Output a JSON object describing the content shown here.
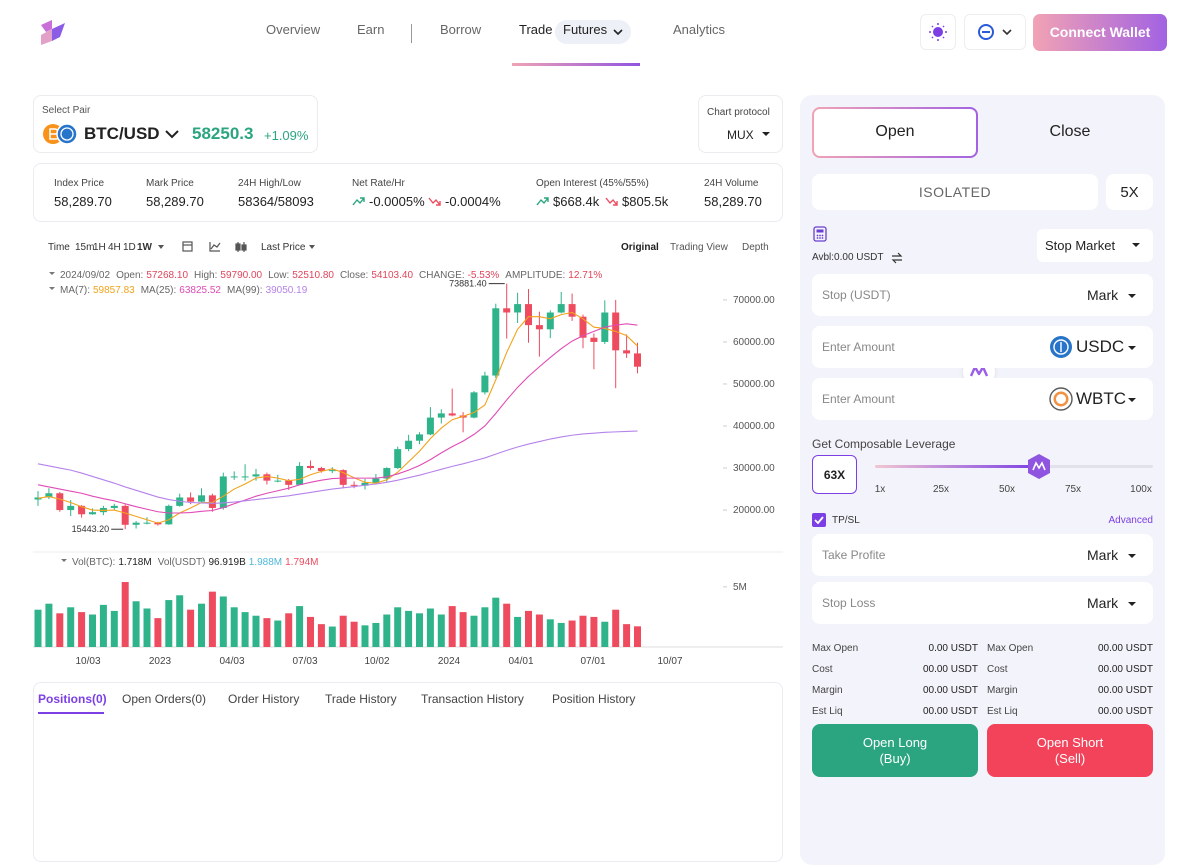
{
  "header": {
    "nav": [
      "Overview",
      "Earn",
      "Borrow",
      "Trade",
      "Futures",
      "Analytics"
    ],
    "connect": "Connect Wallet"
  },
  "pair": {
    "label": "Select Pair",
    "name": "BTC/USD",
    "price": "58250.3",
    "change": "+1.09%"
  },
  "protocol": {
    "label": "Chart protocol",
    "value": "MUX"
  },
  "stats": [
    {
      "label": "Index Price",
      "value": "58,289.70"
    },
    {
      "label": "Mark Price",
      "value": "58,289.70"
    },
    {
      "label": "24H High/Low",
      "value": "58364/58093"
    },
    {
      "label": "Net Rate/Hr",
      "values": [
        "-0.0005%",
        "-0.0004%"
      ]
    },
    {
      "label": "Open Interest (45%/55%)",
      "values": [
        "$668.4k",
        "$805.5k"
      ]
    },
    {
      "label": "24H Volume",
      "value": "58,289.70"
    }
  ],
  "toolbar": {
    "time": "Time",
    "intervals": [
      "15m",
      "1H",
      "4H",
      "1D",
      "1W"
    ],
    "price_type": "Last Price",
    "views": [
      "Original",
      "Trading View",
      "Depth"
    ]
  },
  "chart_data": {
    "type": "candlestick",
    "up_color": "#2fb38a",
    "down_color": "#ef4b5f",
    "ohlc_legend": {
      "date": "2024/09/02",
      "items": [
        {
          "label": "Open:",
          "value": "57268.10"
        },
        {
          "label": "High:",
          "value": "59790.00"
        },
        {
          "label": "Low:",
          "value": "52510.80"
        },
        {
          "label": "Close:",
          "value": "54103.40"
        },
        {
          "label": "CHANGE:",
          "value": "-5.53%"
        },
        {
          "label": "AMPLITUDE:",
          "value": "12.71%"
        }
      ]
    },
    "candles": [
      [
        22500,
        24500,
        21000,
        23000
      ],
      [
        23000,
        25200,
        22600,
        24000
      ],
      [
        24000,
        24300,
        19600,
        20000
      ],
      [
        20000,
        22400,
        18600,
        21000
      ],
      [
        21000,
        21200,
        18200,
        19000
      ],
      [
        19000,
        20400,
        18900,
        19500
      ],
      [
        19500,
        21000,
        18800,
        20500
      ],
      [
        20500,
        21500,
        19900,
        21000
      ],
      [
        21000,
        21400,
        15443.2,
        16500
      ],
      [
        16500,
        17400,
        15600,
        17000
      ],
      [
        17000,
        18300,
        16600,
        17000
      ],
      [
        17000,
        17200,
        16300,
        16600
      ],
      [
        16600,
        21300,
        16500,
        21000
      ],
      [
        21000,
        23900,
        20800,
        23000
      ],
      [
        23000,
        24200,
        21400,
        22000
      ],
      [
        22000,
        25200,
        21800,
        23500
      ],
      [
        23500,
        23900,
        19600,
        20500
      ],
      [
        20500,
        28900,
        20100,
        28000
      ],
      [
        28000,
        29200,
        27200,
        28000
      ],
      [
        28000,
        30900,
        27000,
        28000
      ],
      [
        28000,
        29800,
        27000,
        28500
      ],
      [
        28500,
        28900,
        26100,
        27000
      ],
      [
        27000,
        28400,
        26600,
        27000
      ],
      [
        27000,
        27400,
        24800,
        26000
      ],
      [
        26000,
        31400,
        25900,
        30500
      ],
      [
        30500,
        31800,
        29600,
        30000
      ],
      [
        30000,
        30300,
        28900,
        29300
      ],
      [
        29300,
        30200,
        28800,
        29500
      ],
      [
        29500,
        29700,
        25200,
        26000
      ],
      [
        26000,
        26800,
        25200,
        25800
      ],
      [
        25800,
        27400,
        24900,
        26500
      ],
      [
        26500,
        28600,
        26300,
        27500
      ],
      [
        27500,
        30200,
        26600,
        30000
      ],
      [
        30000,
        35100,
        29800,
        34500
      ],
      [
        34500,
        37900,
        34000,
        36500
      ],
      [
        36500,
        38500,
        35700,
        38000
      ],
      [
        38000,
        44500,
        37800,
        42000
      ],
      [
        42000,
        44000,
        40600,
        43000
      ],
      [
        43000,
        48900,
        42300,
        42500
      ],
      [
        42500,
        43300,
        38500,
        42000
      ],
      [
        42000,
        48300,
        41800,
        48000
      ],
      [
        48000,
        52900,
        47500,
        52000
      ],
      [
        52000,
        69100,
        51400,
        68000
      ],
      [
        68000,
        73881.4,
        60800,
        67000
      ],
      [
        67000,
        71700,
        64500,
        69000
      ],
      [
        69000,
        72600,
        59800,
        64000
      ],
      [
        64000,
        67200,
        56500,
        63000
      ],
      [
        63000,
        67500,
        60900,
        67000
      ],
      [
        67000,
        71900,
        66800,
        69000
      ],
      [
        69000,
        71500,
        65000,
        66000
      ],
      [
        66000,
        66500,
        58500,
        61000
      ],
      [
        61000,
        62000,
        53500,
        60000
      ],
      [
        60000,
        69900,
        59500,
        67000
      ],
      [
        67000,
        70000,
        49000,
        58000
      ],
      [
        58000,
        61800,
        56200,
        57268.1
      ],
      [
        57268.1,
        59790,
        52510.8,
        54103.4
      ]
    ],
    "volumes": [
      3100000,
      3600000,
      2800000,
      3300000,
      2900000,
      2700000,
      3500000,
      3000000,
      5400000,
      3800000,
      3200000,
      2400000,
      3900000,
      4300000,
      3100000,
      3600000,
      4600000,
      4200000,
      3300000,
      2900000,
      2600000,
      2400000,
      2200000,
      2800000,
      3400000,
      2500000,
      1900000,
      1700000,
      2600000,
      2100000,
      1800000,
      2000000,
      2700000,
      3300000,
      3000000,
      2800000,
      3200000,
      2700000,
      3400000,
      2900000,
      2600000,
      3300000,
      4100000,
      3600000,
      2500000,
      3000000,
      2700000,
      2300000,
      2000000,
      2200000,
      2600000,
      2500000,
      2100000,
      3100000,
      1900000,
      1718000
    ],
    "series": [
      {
        "label": "MA(7):",
        "last": "59857.83",
        "color": "#f2a31b",
        "values": [
          22800,
          23200,
          22600,
          21800,
          20800,
          20000,
          19900,
          20000,
          19300,
          18500,
          17700,
          16900,
          17700,
          19300,
          20500,
          21800,
          21800,
          23300,
          25000,
          26200,
          27600,
          28000,
          27600,
          27000,
          27300,
          28400,
          29200,
          29800,
          28900,
          27700,
          26600,
          26400,
          27200,
          29000,
          31500,
          34000,
          37000,
          39500,
          41500,
          42300,
          43200,
          45000,
          51000,
          57500,
          63000,
          66000,
          66000,
          65500,
          66500,
          67000,
          65500,
          63500,
          63200,
          62500,
          61500,
          59000
        ]
      },
      {
        "label": "MA(25):",
        "last": "63825.52",
        "color": "#e04bb5",
        "values": [
          26000,
          25500,
          25000,
          24500,
          24000,
          23300,
          22700,
          22200,
          21500,
          20800,
          20200,
          19600,
          19300,
          19300,
          19400,
          19700,
          19900,
          20600,
          21500,
          22400,
          23300,
          24000,
          24600,
          25200,
          26000,
          26600,
          27100,
          27500,
          27600,
          27600,
          27600,
          27600,
          27900,
          28600,
          29500,
          30600,
          32000,
          33600,
          35100,
          36400,
          38000,
          40000,
          43000,
          46200,
          49200,
          51800,
          54100,
          56300,
          58400,
          60200,
          61500,
          62500,
          63500,
          64000,
          64300,
          64000
        ]
      },
      {
        "label": "MA(99):",
        "last": "39050.19",
        "color": "#b583ea",
        "values": [
          31000,
          30500,
          30000,
          29500,
          28800,
          28000,
          27200,
          26400,
          25500,
          24700,
          23900,
          23100,
          22500,
          22100,
          21800,
          21700,
          21600,
          21700,
          21900,
          22200,
          22500,
          22800,
          23100,
          23400,
          23800,
          24200,
          24600,
          25000,
          25300,
          25600,
          25900,
          26200,
          26600,
          27100,
          27700,
          28300,
          29000,
          29700,
          30400,
          31000,
          31700,
          32400,
          33300,
          34200,
          35000,
          35700,
          36300,
          36900,
          37400,
          37800,
          38100,
          38300,
          38500,
          38600,
          38700,
          38800
        ]
      }
    ],
    "max_label": "73881.40",
    "min_label": "15443.20",
    "vol_legend": [
      {
        "label": "Vol(BTC):",
        "value": "1.718M",
        "color": "#222222"
      },
      {
        "label": "Vol(USDT)",
        "value": "96.919B",
        "color": "#222222"
      },
      {
        "value": "1.988M",
        "color": "#4fb7d8"
      },
      {
        "value": "1.794M",
        "color": "#ef4b5f"
      }
    ],
    "ylim": [
      10500,
      78300
    ],
    "yticks": [
      {
        "value": 70000,
        "label": "70000.00"
      },
      {
        "value": 60000,
        "label": "60000.00"
      },
      {
        "value": 50000,
        "label": "50000.00"
      },
      {
        "value": 40000,
        "label": "40000.00"
      },
      {
        "value": 30000,
        "label": "30000.00"
      },
      {
        "value": 20000,
        "label": "20000.00"
      }
    ],
    "y2lim": [
      0,
      6400000
    ],
    "y2ticks": [
      {
        "value": 5000000,
        "label": "5M"
      }
    ],
    "x_labels": [
      "10/03",
      "2023",
      "04/03",
      "07/03",
      "10/02",
      "2024",
      "04/01",
      "07/01",
      "10/07"
    ],
    "grid": false
  },
  "tabs": [
    "Positions(0)",
    "Open Orders(0)",
    "Order History",
    "Trade History",
    "Transaction History",
    "Position History"
  ],
  "trade": {
    "sides": [
      "Open",
      "Close"
    ],
    "margin_mode": "ISOLATED",
    "leverage_button": "5X",
    "avbl": "Avbl:0.00 USDT",
    "order_type": "Stop Market",
    "stop": {
      "placeholder": "Stop (USDT)",
      "mode": "Mark"
    },
    "amount_in": {
      "placeholder": "Enter Amount",
      "token": "USDC"
    },
    "amount_out": {
      "placeholder": "Enter Amount",
      "token": "WBTC"
    },
    "leverage_title": "Get Composable Leverage",
    "leverage": "63X",
    "slider_ticks": [
      "1x",
      "25x",
      "50x",
      "75x",
      "100x"
    ],
    "tpsl": "TP/SL",
    "advanced": "Advanced",
    "take_profit": {
      "placeholder": "Take Profite",
      "mode": "Mark"
    },
    "stop_loss": {
      "placeholder": "Stop Loss",
      "mode": "Mark"
    },
    "summary_left": [
      [
        "Max Open",
        "0.00 USDT"
      ],
      [
        "Cost",
        "00.00 USDT"
      ],
      [
        "Margin",
        "00.00 USDT"
      ],
      [
        "Est Liq",
        "00.00 USDT"
      ]
    ],
    "summary_right": [
      [
        "Max Open",
        "00.00 USDT"
      ],
      [
        "Cost",
        "00.00 USDT"
      ],
      [
        "Margin",
        "00.00 USDT"
      ],
      [
        "Est Liq",
        "00.00 USDT"
      ]
    ],
    "long": [
      "Open Long",
      "(Buy)"
    ],
    "short": [
      "Open Short",
      "(Sell)"
    ]
  }
}
